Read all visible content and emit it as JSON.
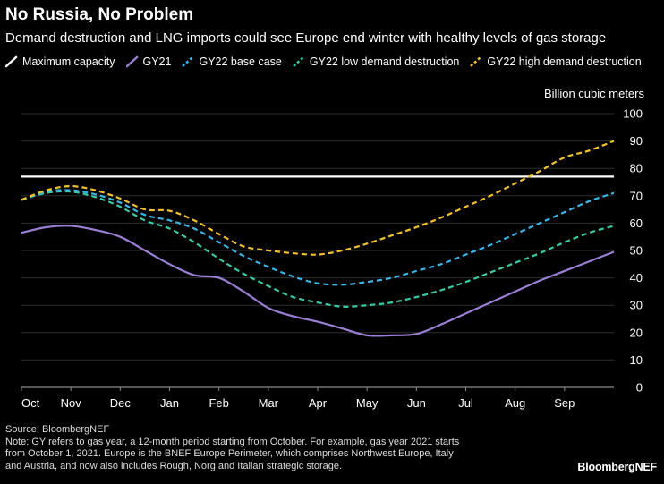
{
  "header": {
    "title": "No Russia, No Problem",
    "subtitle": "Demand destruction and LNG imports could see Europe end winter with healthy levels of gas storage"
  },
  "footer": {
    "source": "Source: BloombergNEF",
    "note_lines": [
      "Note: GY refers to gas year, a 12-month period starting from October. For example, gas year 2021 starts",
      "from October 1, 2021. Europe is the BNEF Europe Perimeter, which comprises Northwest Europe, Italy",
      "and Austria, and now also includes Rough, Norg and Italian strategic storage."
    ],
    "brand": "BloombergNEF"
  },
  "chart_data": {
    "type": "line",
    "title": "No Russia, No Problem",
    "subtitle": "Demand destruction and LNG imports could see Europe end winter with healthy levels of gas storage",
    "ylabel": "Billion cubic meters",
    "ylim": [
      0,
      100
    ],
    "yticks": [
      "100",
      "90",
      "80",
      "70",
      "60",
      "50",
      "40",
      "30",
      "20",
      "10",
      "0"
    ],
    "x_tick_labels": [
      "Oct",
      "Nov",
      "Dec",
      "Jan",
      "Feb",
      "Mar",
      "Apr",
      "May",
      "Jun",
      "Jul",
      "Aug",
      "Sep"
    ],
    "x_start_month": "Oct",
    "x_end_month": "Sep",
    "x_months": [
      0,
      0.5,
      1,
      1.5,
      2,
      2.5,
      3,
      3.5,
      4,
      4.5,
      5,
      5.5,
      6,
      6.5,
      7,
      7.5,
      8,
      8.5,
      9,
      9.5,
      10,
      10.5,
      11,
      11.5,
      12
    ],
    "grid": true,
    "legend_position": "top",
    "series": [
      {
        "name": "Maximum capacity",
        "color": "#ffffff",
        "style": "solid",
        "values": [
          77,
          77,
          77,
          77,
          77,
          77,
          77,
          77,
          77,
          77,
          77,
          77,
          77,
          77,
          77,
          77,
          77,
          77,
          77,
          77,
          77,
          77,
          77,
          77,
          77
        ]
      },
      {
        "name": "GY21",
        "color": "#9b7fd4",
        "style": "solid",
        "values": [
          56.5,
          58.5,
          59,
          57.5,
          55,
          50,
          45,
          41,
          40,
          35,
          29,
          26,
          24,
          21.5,
          19,
          19,
          19.5,
          23,
          27,
          31,
          35,
          39,
          42.5,
          46,
          49.5
        ]
      },
      {
        "name": "GY22 base case",
        "color": "#3bb4e6",
        "style": "dashed",
        "values": [
          68.5,
          71.5,
          72,
          70.5,
          67.5,
          63,
          61,
          58,
          53,
          48,
          44,
          40.5,
          38,
          37.5,
          38.5,
          40,
          42.5,
          45,
          48.5,
          52,
          56,
          60,
          64,
          68,
          71
        ]
      },
      {
        "name": "GY22 low demand destruction",
        "color": "#3bc9a6",
        "style": "dashed",
        "values": [
          68.5,
          71,
          71.5,
          69.5,
          66,
          61,
          58,
          53,
          47,
          41.5,
          37,
          33,
          31,
          29.5,
          30,
          31,
          33,
          35.5,
          38.5,
          42,
          45.5,
          49,
          53,
          56.5,
          59
        ]
      },
      {
        "name": "GY22 high demand destruction",
        "color": "#f2c12e",
        "style": "dashed",
        "values": [
          68.5,
          72,
          73.5,
          72,
          69,
          65,
          64.5,
          61,
          56,
          51.5,
          50,
          49,
          48.5,
          50,
          52.5,
          55.5,
          58.5,
          62,
          66,
          70,
          74.5,
          79,
          84,
          86.5,
          90
        ]
      }
    ]
  }
}
